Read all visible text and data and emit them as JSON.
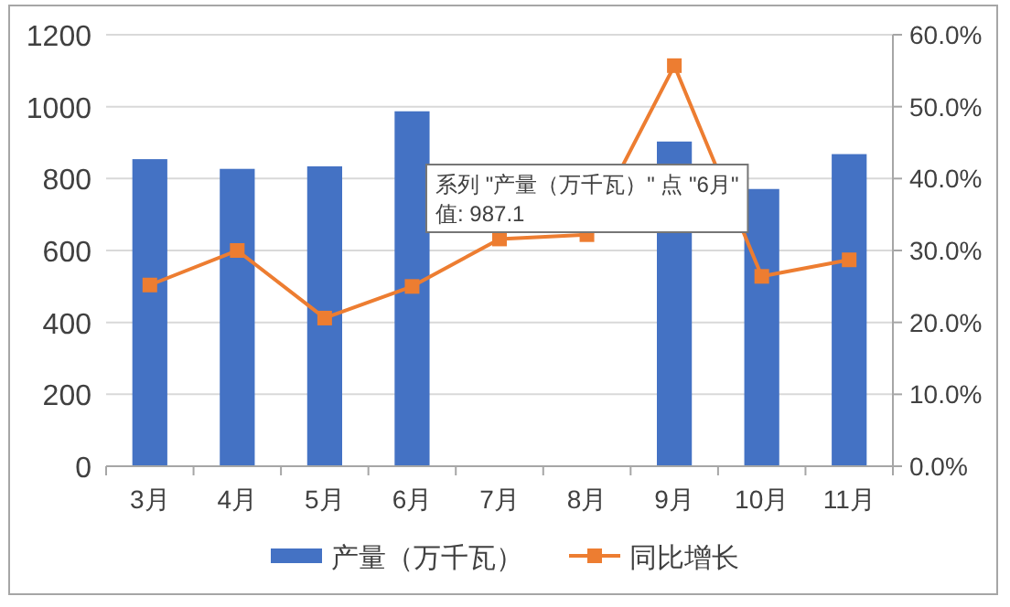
{
  "chart_data": {
    "type": "bar",
    "categories": [
      "3月",
      "4月",
      "5月",
      "6月",
      "7月",
      "8月",
      "9月",
      "10月",
      "11月"
    ],
    "series": [
      {
        "name": "产量（万千瓦）",
        "color": "#4472c4",
        "values": [
          854,
          827,
          834,
          987.1,
          null,
          null,
          903,
          771,
          868
        ]
      },
      {
        "name": "同比增长",
        "type": "line",
        "axis": "y2",
        "color": "#ed7d31",
        "marker": "square",
        "values": [
          25.2,
          30.0,
          20.6,
          25.0,
          31.6,
          32.2,
          55.7,
          26.4,
          28.7
        ]
      }
    ],
    "ylim": [
      0,
      1200
    ],
    "yticks": [
      0,
      200,
      400,
      600,
      800,
      1000,
      1200
    ],
    "y2lim": [
      0,
      60
    ],
    "y2ticks": [
      {
        "value": 0,
        "label": "0.0%"
      },
      {
        "value": 10,
        "label": "10.0%"
      },
      {
        "value": 20,
        "label": "20.0%"
      },
      {
        "value": 30,
        "label": "30.0%"
      },
      {
        "value": 40,
        "label": "40.0%"
      },
      {
        "value": 50,
        "label": "50.0%"
      },
      {
        "value": 60,
        "label": "60.0%"
      }
    ],
    "grid": "y",
    "legend": "bottom",
    "annotations": [
      "系列 \"产量（万千瓦）\" 点 \"6月\"\n值: 987.1"
    ]
  }
}
